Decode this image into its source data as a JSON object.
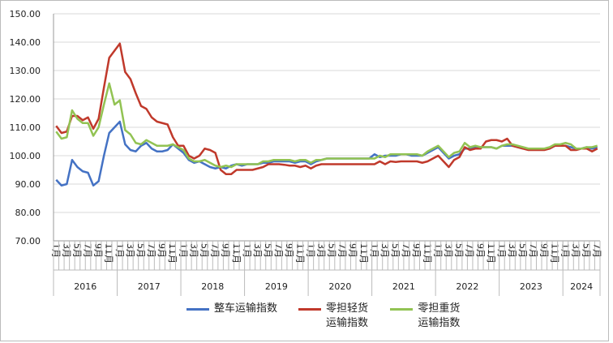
{
  "chart_data": {
    "type": "line",
    "categories": [
      "1月",
      null,
      "3月",
      null,
      "5月",
      null,
      "7月",
      null,
      "9月",
      null,
      "11月",
      null,
      "1月",
      null,
      "3月",
      null,
      "5月",
      null,
      "7月",
      null,
      "9月",
      null,
      "11月",
      null,
      "1月",
      null,
      "3月",
      null,
      "5月",
      null,
      "7月",
      null,
      "9月",
      null,
      "11月",
      null,
      "1月",
      null,
      "3月",
      null,
      "5月",
      null,
      "7月",
      null,
      "9月",
      null,
      "11月",
      null,
      "1月",
      null,
      "3月",
      null,
      "5月",
      null,
      "7月",
      null,
      "9月",
      null,
      "11月",
      null,
      "1月",
      null,
      "3月",
      null,
      "5月",
      null,
      "7月",
      null,
      "9月",
      null,
      "11月",
      null,
      "1月",
      null,
      "3月",
      null,
      "5月",
      null,
      "7月",
      null,
      "9月",
      null,
      "11月",
      null,
      "1月",
      null,
      "3月",
      null,
      "5月",
      null,
      "7月",
      null,
      "9月",
      null,
      "11月",
      null,
      "1月",
      null,
      "3月",
      null,
      "5月",
      null,
      "7月"
    ],
    "years": [
      "2016",
      "2017",
      "2018",
      "2019",
      "2020",
      "2021",
      "2022",
      "2023",
      "2024"
    ],
    "ylim": [
      70,
      150
    ],
    "yticks": [
      {
        "value": 70,
        "label": "70.00"
      },
      {
        "value": 80,
        "label": "80.00"
      },
      {
        "value": 90,
        "label": "90.00"
      },
      {
        "value": 100,
        "label": "100.00"
      },
      {
        "value": 110,
        "label": "110.00"
      },
      {
        "value": 120,
        "label": "120.00"
      },
      {
        "value": 130,
        "label": "130.00"
      },
      {
        "value": 140,
        "label": "140.00"
      },
      {
        "value": 150,
        "label": "150.00"
      }
    ],
    "series": [
      {
        "name": "整车运输指数",
        "color": "#4472c4",
        "values": [
          91.5,
          89.5,
          90,
          98.5,
          96,
          94.5,
          94,
          89.5,
          91,
          100,
          108,
          110,
          112,
          104,
          102,
          101.5,
          103.5,
          104.5,
          102.5,
          101.5,
          101.5,
          102,
          104,
          102.5,
          101,
          98.5,
          97.5,
          98,
          97,
          96,
          95.5,
          96,
          95.5,
          96.5,
          97,
          96.5,
          97,
          97,
          97,
          97.5,
          97.5,
          98,
          98,
          98,
          98,
          97.5,
          98,
          98,
          97,
          98,
          98.5,
          99,
          99,
          99,
          99,
          99,
          99,
          99,
          99,
          99,
          100.5,
          99.5,
          100,
          100,
          100,
          100.5,
          100.5,
          100,
          100,
          100,
          101,
          102,
          103,
          101,
          99,
          100,
          100.5,
          102.5,
          102.5,
          103,
          103,
          103,
          103,
          102.5,
          103.5,
          103.5,
          103.5,
          103,
          102.5,
          102.5,
          102.5,
          102.5,
          102.5,
          102.5,
          103.5,
          103.5,
          103.5,
          103,
          102.5,
          102.5,
          103,
          102.5,
          103
        ]
      },
      {
        "name": "零担轻货运输指数",
        "color": "#c0392b",
        "values": [
          110.5,
          108,
          108.5,
          114,
          114,
          112.5,
          113.5,
          109.5,
          113,
          124,
          134.5,
          137,
          139.5,
          129.5,
          127,
          122,
          117.5,
          116.5,
          113.5,
          112,
          111.5,
          111,
          106.5,
          103.5,
          103.5,
          100,
          99,
          100,
          102.5,
          102,
          101,
          95,
          93.5,
          93.5,
          95,
          95,
          95,
          95,
          95.5,
          96,
          97,
          97,
          97,
          96.8,
          96.5,
          96.5,
          96,
          96.5,
          95.5,
          96.5,
          97,
          97,
          97,
          97,
          97,
          97,
          97,
          97,
          97,
          97,
          97,
          98,
          97,
          98,
          97.8,
          98,
          98,
          98,
          98,
          97.5,
          98,
          99,
          100,
          98,
          96,
          98.5,
          99.5,
          103,
          102,
          102.5,
          102.5,
          105,
          105.5,
          105.5,
          105,
          106,
          103.5,
          103,
          102.5,
          102,
          102,
          102,
          102,
          102.5,
          103.5,
          103.5,
          103.5,
          102,
          102,
          102.5,
          102.5,
          101.5,
          102.5
        ]
      },
      {
        "name": "零担重货运输指数",
        "color": "#92c353",
        "values": [
          108.5,
          106,
          106.5,
          116,
          113,
          111.5,
          111.5,
          107,
          110,
          118,
          125.5,
          118,
          119.5,
          109,
          107.5,
          104.5,
          104,
          105.5,
          104.5,
          103.5,
          103.5,
          103.5,
          104,
          103,
          102,
          99,
          98,
          98,
          98.5,
          97.5,
          96.5,
          96,
          96.5,
          96,
          97,
          97,
          97,
          97,
          97,
          98,
          98,
          98.5,
          98.5,
          98.5,
          98.5,
          98,
          98.5,
          98.5,
          97.5,
          98.5,
          98.5,
          99,
          99,
          99,
          99,
          99,
          99,
          99,
          99,
          99,
          99,
          100,
          99.5,
          100.5,
          100.5,
          100.5,
          100.5,
          100.5,
          100.5,
          100,
          101.5,
          102.5,
          103.5,
          101.5,
          99.5,
          101,
          101.5,
          104.5,
          103,
          103.5,
          103,
          103,
          103,
          102.5,
          103.5,
          104,
          104,
          103.5,
          103,
          102.5,
          102.5,
          102.5,
          102.5,
          103,
          104,
          104,
          104.5,
          104,
          102.5,
          102.5,
          103,
          103,
          103.5
        ]
      }
    ]
  }
}
